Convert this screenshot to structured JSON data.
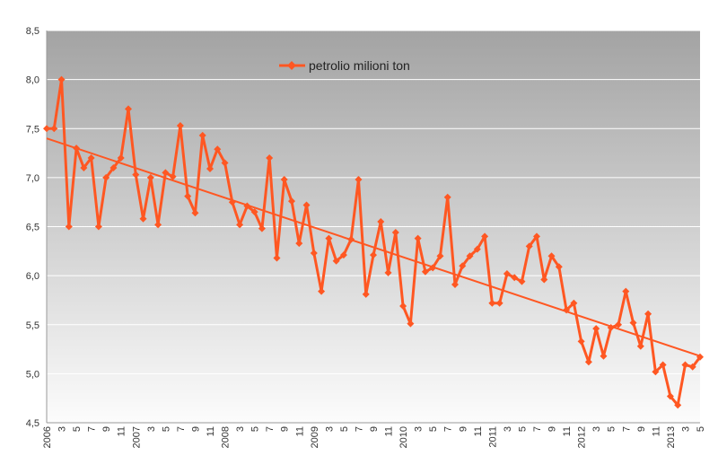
{
  "chart_data": {
    "type": "line",
    "title": "",
    "xlabel": "",
    "ylabel": "",
    "ylim": [
      4.5,
      8.5
    ],
    "yticks": [
      "8,5",
      "8,0",
      "7,5",
      "7,0",
      "6,5",
      "6,0",
      "5,5",
      "5,0",
      "4,5"
    ],
    "ytick_values": [
      8.5,
      8.0,
      7.5,
      7.0,
      6.5,
      6.0,
      5.5,
      5.0,
      4.5
    ],
    "grid": true,
    "legend_position": "top-center",
    "x": [
      "2006",
      "2",
      "3",
      "4",
      "5",
      "6",
      "7",
      "8",
      "9",
      "10",
      "11",
      "12",
      "2007",
      "2",
      "3",
      "4",
      "5",
      "6",
      "7",
      "8",
      "9",
      "10",
      "11",
      "12",
      "2008",
      "2",
      "3",
      "4",
      "5",
      "6",
      "7",
      "8",
      "9",
      "10",
      "11",
      "12",
      "2009",
      "2",
      "3",
      "4",
      "5",
      "6",
      "7",
      "8",
      "9",
      "10",
      "11",
      "12",
      "2010",
      "2",
      "3",
      "4",
      "5",
      "6",
      "7",
      "8",
      "9",
      "10",
      "11",
      "12",
      "2011",
      "2",
      "3",
      "4",
      "5",
      "6",
      "7",
      "8",
      "9",
      "10",
      "11",
      "12",
      "2012",
      "2",
      "3",
      "4",
      "5",
      "6",
      "7",
      "8",
      "9",
      "10",
      "11",
      "12",
      "2013",
      "2",
      "3",
      "4",
      "5"
    ],
    "x_tick_labels": [
      "2006",
      "",
      "3",
      "",
      "5",
      "",
      "7",
      "",
      "9",
      "",
      "11",
      "",
      "2007",
      "",
      "3",
      "",
      "5",
      "",
      "7",
      "",
      "9",
      "",
      "11",
      "",
      "2008",
      "",
      "3",
      "",
      "5",
      "",
      "7",
      "",
      "9",
      "",
      "11",
      "",
      "2009",
      "",
      "3",
      "",
      "5",
      "",
      "7",
      "",
      "9",
      "",
      "11",
      "",
      "2010",
      "",
      "3",
      "",
      "5",
      "",
      "7",
      "",
      "9",
      "",
      "11",
      "",
      "2011",
      "",
      "3",
      "",
      "5",
      "",
      "7",
      "",
      "9",
      "",
      "11",
      "",
      "2012",
      "",
      "3",
      "",
      "5",
      "",
      "7",
      "",
      "9",
      "",
      "11",
      "",
      "2013",
      "",
      "3",
      "",
      "5"
    ],
    "series": [
      {
        "name": "petrolio milioni ton",
        "color": "#ff5722",
        "marker": "diamond",
        "values": [
          7.5,
          7.5,
          8.0,
          6.5,
          7.3,
          7.1,
          7.2,
          6.5,
          7.0,
          7.1,
          7.2,
          7.7,
          7.03,
          6.58,
          7.0,
          6.52,
          7.05,
          7.01,
          7.53,
          6.81,
          6.64,
          7.43,
          7.09,
          7.29,
          7.15,
          6.75,
          6.52,
          6.71,
          6.65,
          6.48,
          7.2,
          6.18,
          6.98,
          6.76,
          6.33,
          6.72,
          6.23,
          5.84,
          6.38,
          6.15,
          6.21,
          6.37,
          6.98,
          5.81,
          6.21,
          6.55,
          6.03,
          6.44,
          5.69,
          5.51,
          6.38,
          6.04,
          6.08,
          6.2,
          6.8,
          5.91,
          6.1,
          6.2,
          6.27,
          6.4,
          5.72,
          5.72,
          6.02,
          5.98,
          5.94,
          6.3,
          6.4,
          5.96,
          6.2,
          6.09,
          5.65,
          5.72,
          5.33,
          5.12,
          5.46,
          5.18,
          5.47,
          5.5,
          5.84,
          5.52,
          5.28,
          5.61,
          5.02,
          5.09,
          4.77,
          4.68,
          5.09,
          5.07,
          5.17
        ]
      }
    ],
    "trendline": {
      "type": "linear",
      "color": "#ff5722",
      "start_value": 7.4,
      "end_value": 5.18
    },
    "background": {
      "gradient_top": "#a3a3a3",
      "gradient_bottom": "#fcfcfc",
      "grid_color": "#ffffff"
    }
  }
}
